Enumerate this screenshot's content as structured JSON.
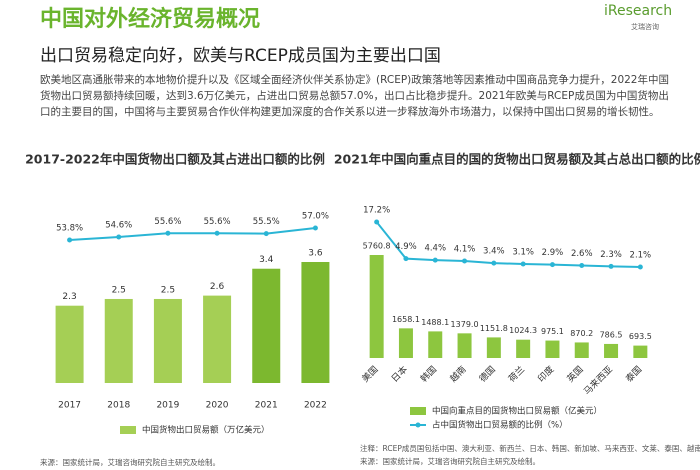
{
  "header": {
    "title": "中国对外经济贸易概况",
    "subtitle": "出口贸易稳定向好，欧美与RCEP成员国为主要出口国",
    "logo": "iResearch",
    "logo_sub": "艾瑞咨询"
  },
  "body": "欧美地区高通胀带来的本地物价提升以及《区域全面经济伙伴关系协定》(RCEP)政策落地等因素推动中国商品竞争力提升，2022年中国货物出口贸易额持续回暖，达到3.6万亿美元，占进出口贸易总额57.0%，出口占比稳步提升。2021年欧美与RCEP成员国为中国货物出口的主要目的国，中国将与主要贸易合作伙伴构建更加深度的合作关系以进一步释放海外市场潜力，以保持中国出口贸易的增长韧性。",
  "chart_data": [
    {
      "type": "combo",
      "title": "2017-2022年中国货物出口额及其占进出口额的比例",
      "categories": [
        "2017",
        "2018",
        "2019",
        "2020",
        "2021",
        "2022"
      ],
      "series": [
        {
          "type": "bar",
          "name": "中国货物出口贸易额（万亿美元）",
          "color": "#a5cf55",
          "colors": [
            "#a5cf55",
            "#a5cf55",
            "#a5cf55",
            "#a5cf55",
            "#7cb82f",
            "#7cb82f"
          ],
          "values": [
            2.3,
            2.5,
            2.5,
            2.6,
            3.4,
            3.6
          ]
        },
        {
          "type": "line",
          "color": "#2ab5d5",
          "values": [
            53.8,
            54.6,
            55.6,
            55.6,
            55.5,
            57.0
          ],
          "value_labels": [
            "53.8%",
            "54.6%",
            "55.6%",
            "55.6%",
            "55.5%",
            "57.0%"
          ]
        }
      ],
      "source": "来源：国家统计局，艾瑞咨询研究院自主研究及绘制。"
    },
    {
      "type": "combo",
      "title": "2021年中国向重点目的国的货物出口贸易额及其占总出口额的比例",
      "categories": [
        "美国",
        "日本",
        "韩国",
        "越南",
        "德国",
        "荷兰",
        "印度",
        "英国",
        "马来西亚",
        "泰国"
      ],
      "series": [
        {
          "type": "bar",
          "name": "中国向重点目的国货物出口贸易额（亿美元）",
          "color": "#8dc63f",
          "values": [
            5760.8,
            1658.1,
            1488.1,
            1379.0,
            1151.8,
            1024.3,
            975.1,
            870.2,
            786.5,
            693.5
          ],
          "value_labels": [
            "5760.8",
            "1658.1",
            "1488.1",
            "1379.0",
            "1151.8",
            "1024.3",
            "975.1",
            "870.2",
            "786.5",
            "693.5"
          ]
        },
        {
          "type": "line",
          "name": "占中国货物出口贸易额的比例（%）",
          "color": "#2ab5d5",
          "values": [
            17.2,
            4.9,
            4.4,
            4.1,
            3.4,
            3.1,
            2.9,
            2.6,
            2.3,
            2.1
          ],
          "value_labels": [
            "17.2%",
            "4.9%",
            "4.4%",
            "4.1%",
            "3.4%",
            "3.1%",
            "2.9%",
            "2.6%",
            "2.3%",
            "2.1%"
          ]
        }
      ],
      "note": "注释：RCEP成员国包括中国、澳大利亚、新西兰、日本、韩国、新加坡、马来西亚、文莱、泰国、越南、老挝、柬埔寨、菲律宾、印度尼西亚、缅甸",
      "source": "来源：国家统计局，艾瑞咨询研究院自主研究及绘制。"
    }
  ]
}
